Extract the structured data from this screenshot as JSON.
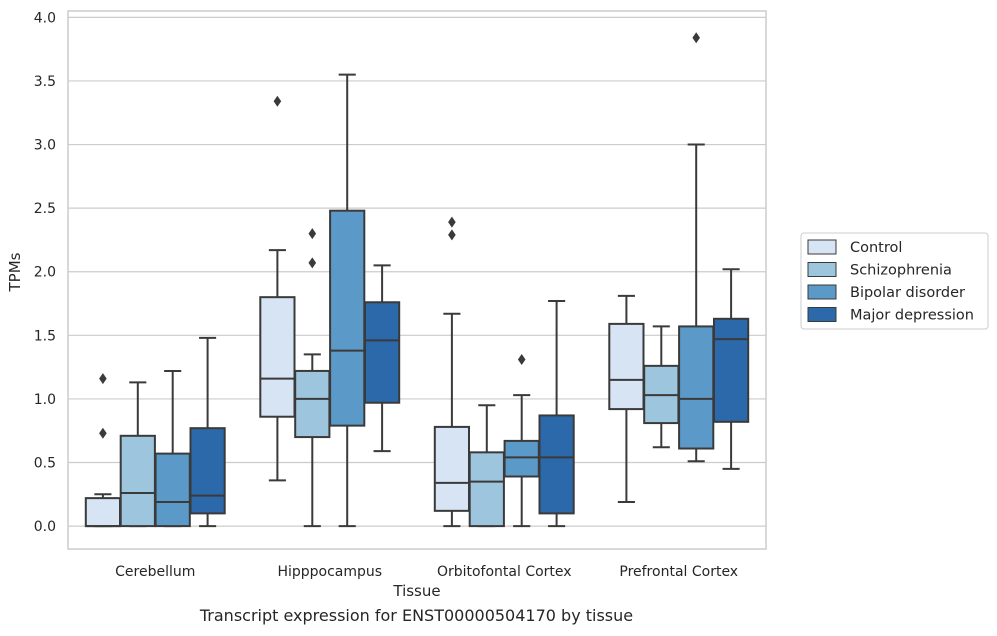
{
  "chart_data": {
    "type": "boxplot",
    "xlabel": "Tissue",
    "ylabel": "TPMs",
    "caption": "Transcript expression for ENST00000504170 by tissue",
    "categories": [
      "Cerebellum",
      "Hipppocampus",
      "Orbitofontal Cortex",
      "Prefrontal Cortex"
    ],
    "ylim": [
      -0.18,
      4.05
    ],
    "yticks": [
      "0.0",
      "0.5",
      "1.0",
      "1.5",
      "2.0",
      "2.5",
      "3.0",
      "3.5",
      "4.0"
    ],
    "grid": true,
    "legend_position": "right",
    "series": [
      {
        "name": "Control",
        "color": "#d6e4f3",
        "boxes": [
          {
            "whislo": 0.0,
            "q1": 0.0,
            "med": 0.0,
            "q3": 0.22,
            "whishi": 0.25,
            "fliers": [
              0.73,
              1.16
            ]
          },
          {
            "whislo": 0.36,
            "q1": 0.86,
            "med": 1.16,
            "q3": 1.8,
            "whishi": 2.17,
            "fliers": [
              3.34
            ]
          },
          {
            "whislo": 0.0,
            "q1": 0.12,
            "med": 0.34,
            "q3": 0.78,
            "whishi": 1.67,
            "fliers": [
              2.29,
              2.39
            ]
          },
          {
            "whislo": 0.19,
            "q1": 0.92,
            "med": 1.15,
            "q3": 1.59,
            "whishi": 1.81,
            "fliers": []
          }
        ]
      },
      {
        "name": "Schizophrenia",
        "color": "#9ec5de",
        "boxes": [
          {
            "whislo": 0.0,
            "q1": 0.0,
            "med": 0.26,
            "q3": 0.71,
            "whishi": 1.13,
            "fliers": []
          },
          {
            "whislo": 0.0,
            "q1": 0.7,
            "med": 1.0,
            "q3": 1.22,
            "whishi": 1.35,
            "fliers": [
              2.07,
              2.3
            ]
          },
          {
            "whislo": 0.0,
            "q1": 0.0,
            "med": 0.35,
            "q3": 0.58,
            "whishi": 0.95,
            "fliers": []
          },
          {
            "whislo": 0.62,
            "q1": 0.81,
            "med": 1.03,
            "q3": 1.26,
            "whishi": 1.57,
            "fliers": []
          }
        ]
      },
      {
        "name": "Bipolar disorder",
        "color": "#5b9ac8",
        "boxes": [
          {
            "whislo": 0.0,
            "q1": 0.0,
            "med": 0.19,
            "q3": 0.57,
            "whishi": 1.22,
            "fliers": []
          },
          {
            "whislo": 0.0,
            "q1": 0.79,
            "med": 1.38,
            "q3": 2.48,
            "whishi": 3.55,
            "fliers": []
          },
          {
            "whislo": 0.0,
            "q1": 0.39,
            "med": 0.54,
            "q3": 0.67,
            "whishi": 1.03,
            "fliers": [
              1.31
            ]
          },
          {
            "whislo": 0.51,
            "q1": 0.61,
            "med": 1.0,
            "q3": 1.57,
            "whishi": 3.0,
            "fliers": [
              3.84
            ]
          }
        ]
      },
      {
        "name": "Major depression",
        "color": "#2c69aa",
        "boxes": [
          {
            "whislo": 0.0,
            "q1": 0.1,
            "med": 0.24,
            "q3": 0.77,
            "whishi": 1.48,
            "fliers": []
          },
          {
            "whislo": 0.59,
            "q1": 0.97,
            "med": 1.46,
            "q3": 1.76,
            "whishi": 2.05,
            "fliers": []
          },
          {
            "whislo": 0.0,
            "q1": 0.1,
            "med": 0.54,
            "q3": 0.87,
            "whishi": 1.77,
            "fliers": []
          },
          {
            "whislo": 0.45,
            "q1": 0.82,
            "med": 1.47,
            "q3": 1.63,
            "whishi": 2.02,
            "fliers": []
          }
        ]
      }
    ]
  }
}
